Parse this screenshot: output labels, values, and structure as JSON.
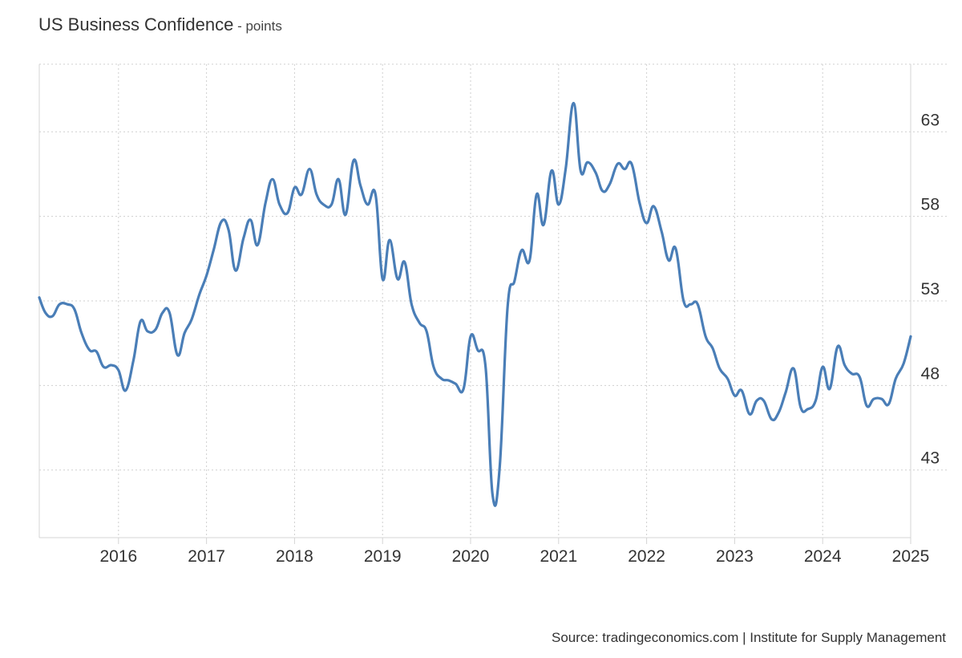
{
  "title": "US Business Confidence",
  "unit": "points",
  "title_separator": " - ",
  "source": "Source: tradingeconomics.com | Institute for Supply Management",
  "colors": {
    "line": "#4a7eb7",
    "grid": "#cfcfcf",
    "axis": "#d4d4d4",
    "text": "#333333"
  },
  "chart_data": {
    "type": "line",
    "title": "US Business Confidence",
    "ylabel": "points",
    "xlim": [
      2015.1,
      2025.0
    ],
    "ylim": [
      39,
      67
    ],
    "y_axis_side": "right",
    "grid": true,
    "x_ticks": [
      2016,
      2017,
      2018,
      2019,
      2020,
      2021,
      2022,
      2023,
      2024,
      2025
    ],
    "x_tick_labels": [
      "2016",
      "2017",
      "2018",
      "2019",
      "2020",
      "2021",
      "2022",
      "2023",
      "2024",
      "2025"
    ],
    "y_ticks": [
      43,
      48,
      53,
      58,
      63
    ],
    "y_tick_labels": [
      "43",
      "48",
      "53",
      "58",
      "63"
    ],
    "series": [
      {
        "values": [
          [
            2015.1,
            53.2
          ],
          [
            2015.17,
            52.3
          ],
          [
            2015.25,
            52.1
          ],
          [
            2015.33,
            52.8
          ],
          [
            2015.42,
            52.8
          ],
          [
            2015.5,
            52.5
          ],
          [
            2015.58,
            51.1
          ],
          [
            2015.67,
            50.1
          ],
          [
            2015.75,
            50.0
          ],
          [
            2015.83,
            49.1
          ],
          [
            2015.92,
            49.2
          ],
          [
            2016.0,
            48.9
          ],
          [
            2016.08,
            47.7
          ],
          [
            2016.17,
            49.5
          ],
          [
            2016.25,
            51.8
          ],
          [
            2016.33,
            51.2
          ],
          [
            2016.42,
            51.3
          ],
          [
            2016.5,
            52.3
          ],
          [
            2016.58,
            52.3
          ],
          [
            2016.67,
            49.8
          ],
          [
            2016.75,
            51.1
          ],
          [
            2016.83,
            51.9
          ],
          [
            2016.92,
            53.4
          ],
          [
            2017.0,
            54.5
          ],
          [
            2017.08,
            56.0
          ],
          [
            2017.17,
            57.7
          ],
          [
            2017.25,
            57.2
          ],
          [
            2017.33,
            54.8
          ],
          [
            2017.42,
            56.7
          ],
          [
            2017.5,
            57.8
          ],
          [
            2017.58,
            56.3
          ],
          [
            2017.67,
            58.8
          ],
          [
            2017.75,
            60.2
          ],
          [
            2017.83,
            58.7
          ],
          [
            2017.92,
            58.2
          ],
          [
            2018.0,
            59.7
          ],
          [
            2018.08,
            59.3
          ],
          [
            2018.17,
            60.8
          ],
          [
            2018.25,
            59.3
          ],
          [
            2018.33,
            58.7
          ],
          [
            2018.42,
            58.7
          ],
          [
            2018.5,
            60.2
          ],
          [
            2018.58,
            58.1
          ],
          [
            2018.67,
            61.3
          ],
          [
            2018.75,
            59.8
          ],
          [
            2018.83,
            58.7
          ],
          [
            2018.92,
            59.3
          ],
          [
            2019.0,
            54.3
          ],
          [
            2019.08,
            56.6
          ],
          [
            2019.17,
            54.3
          ],
          [
            2019.25,
            55.3
          ],
          [
            2019.33,
            52.8
          ],
          [
            2019.42,
            51.7
          ],
          [
            2019.5,
            51.2
          ],
          [
            2019.58,
            49.1
          ],
          [
            2019.67,
            48.4
          ],
          [
            2019.75,
            48.3
          ],
          [
            2019.83,
            48.1
          ],
          [
            2019.92,
            47.8
          ],
          [
            2020.0,
            50.9
          ],
          [
            2020.08,
            50.1
          ],
          [
            2020.17,
            49.1
          ],
          [
            2020.25,
            41.5
          ],
          [
            2020.33,
            43.1
          ],
          [
            2020.42,
            52.6
          ],
          [
            2020.5,
            54.2
          ],
          [
            2020.58,
            56.0
          ],
          [
            2020.67,
            55.4
          ],
          [
            2020.75,
            59.3
          ],
          [
            2020.83,
            57.5
          ],
          [
            2020.92,
            60.7
          ],
          [
            2021.0,
            58.7
          ],
          [
            2021.08,
            60.8
          ],
          [
            2021.17,
            64.7
          ],
          [
            2021.25,
            60.7
          ],
          [
            2021.33,
            61.2
          ],
          [
            2021.42,
            60.6
          ],
          [
            2021.5,
            59.5
          ],
          [
            2021.58,
            59.9
          ],
          [
            2021.67,
            61.1
          ],
          [
            2021.75,
            60.8
          ],
          [
            2021.83,
            61.1
          ],
          [
            2021.92,
            58.8
          ],
          [
            2022.0,
            57.6
          ],
          [
            2022.08,
            58.6
          ],
          [
            2022.17,
            57.1
          ],
          [
            2022.25,
            55.4
          ],
          [
            2022.33,
            56.1
          ],
          [
            2022.42,
            53.0
          ],
          [
            2022.5,
            52.8
          ],
          [
            2022.58,
            52.8
          ],
          [
            2022.67,
            50.9
          ],
          [
            2022.75,
            50.2
          ],
          [
            2022.83,
            49.0
          ],
          [
            2022.92,
            48.4
          ],
          [
            2023.0,
            47.4
          ],
          [
            2023.08,
            47.7
          ],
          [
            2023.17,
            46.3
          ],
          [
            2023.25,
            47.1
          ],
          [
            2023.33,
            47.1
          ],
          [
            2023.42,
            46.0
          ],
          [
            2023.5,
            46.4
          ],
          [
            2023.58,
            47.6
          ],
          [
            2023.67,
            49.0
          ],
          [
            2023.75,
            46.7
          ],
          [
            2023.83,
            46.6
          ],
          [
            2023.92,
            47.1
          ],
          [
            2024.0,
            49.1
          ],
          [
            2024.08,
            47.8
          ],
          [
            2024.17,
            50.3
          ],
          [
            2024.25,
            49.2
          ],
          [
            2024.33,
            48.7
          ],
          [
            2024.42,
            48.5
          ],
          [
            2024.5,
            46.8
          ],
          [
            2024.58,
            47.2
          ],
          [
            2024.67,
            47.2
          ],
          [
            2024.75,
            46.9
          ],
          [
            2024.83,
            48.4
          ],
          [
            2024.92,
            49.3
          ],
          [
            2025.0,
            50.9
          ]
        ]
      }
    ]
  }
}
